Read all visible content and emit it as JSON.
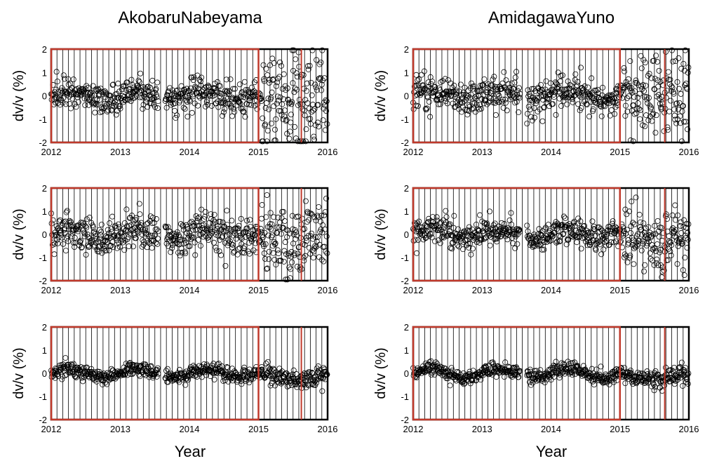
{
  "figure": {
    "columns": [
      "AkobaruNabeyama",
      "AmidagawaYuno"
    ],
    "xlabel": "Year",
    "ylabel": "dv/v (%)"
  },
  "colors": {
    "marker_stroke": "#000000",
    "window_box": "#c0392b",
    "event_line": "#c0392b",
    "frame": "#000000",
    "grid_lines": "#000000"
  },
  "chart_data": [
    {
      "type": "scatter",
      "column": "AkobaruNabeyama",
      "row": 1,
      "xlim": [
        2012,
        2016
      ],
      "ylim": [
        -2,
        2
      ],
      "xticks": [
        2012,
        2013,
        2014,
        2015,
        2016
      ],
      "yticks": [
        2,
        1,
        0,
        -1,
        -2
      ],
      "xlabel": "",
      "ylabel": "dv/v (%)",
      "grid": "vertical monthly",
      "pre_event_std": 0.35,
      "post_event_std": 1.05,
      "window": [
        2012,
        2015
      ],
      "event": 2015.62
    },
    {
      "type": "scatter",
      "column": "AmidagawaYuno",
      "row": 1,
      "xlim": [
        2012,
        2016
      ],
      "ylim": [
        -2,
        2
      ],
      "xticks": [
        2012,
        2013,
        2014,
        2015,
        2016
      ],
      "yticks": [
        2,
        1,
        0,
        -1,
        -2
      ],
      "xlabel": "",
      "ylabel": "dv/v (%)",
      "grid": "vertical monthly",
      "pre_event_std": 0.35,
      "post_event_std": 0.95,
      "window": [
        2012,
        2015
      ],
      "event": 2015.65
    },
    {
      "type": "scatter",
      "column": "AkobaruNabeyama",
      "row": 2,
      "xlim": [
        2012,
        2016
      ],
      "ylim": [
        -2,
        2
      ],
      "xticks": [
        2012,
        2013,
        2014,
        2015,
        2016
      ],
      "yticks": [
        2,
        1,
        0,
        -1,
        -2
      ],
      "xlabel": "",
      "ylabel": "dv/v (%)",
      "grid": "vertical monthly",
      "pre_event_std": 0.4,
      "post_event_std": 0.75,
      "window": [
        2012,
        2015
      ],
      "event": 2015.62
    },
    {
      "type": "scatter",
      "column": "AmidagawaYuno",
      "row": 2,
      "xlim": [
        2012,
        2016
      ],
      "ylim": [
        -2,
        2
      ],
      "xticks": [
        2012,
        2013,
        2014,
        2015,
        2016
      ],
      "yticks": [
        2,
        1,
        0,
        -1,
        -2
      ],
      "xlabel": "",
      "ylabel": "dv/v (%)",
      "grid": "vertical monthly",
      "pre_event_std": 0.3,
      "post_event_std": 0.7,
      "window": [
        2012,
        2015
      ],
      "event": 2015.65
    },
    {
      "type": "scatter",
      "column": "AkobaruNabeyama",
      "row": 3,
      "xlim": [
        2012,
        2016
      ],
      "ylim": [
        -2,
        2
      ],
      "xticks": [
        2012,
        2013,
        2014,
        2015,
        2016
      ],
      "yticks": [
        2,
        1,
        0,
        -1,
        -2
      ],
      "xlabel": "Year",
      "ylabel": "dv/v (%)",
      "grid": "vertical monthly",
      "pre_event_std": 0.15,
      "post_event_std": 0.2,
      "window": [
        2012,
        2015
      ],
      "event": 2015.62
    },
    {
      "type": "scatter",
      "column": "AmidagawaYuno",
      "row": 3,
      "xlim": [
        2012,
        2016
      ],
      "ylim": [
        -2,
        2
      ],
      "xticks": [
        2012,
        2013,
        2014,
        2015,
        2016
      ],
      "yticks": [
        2,
        1,
        0,
        -1,
        -2
      ],
      "xlabel": "Year",
      "ylabel": "dv/v (%)",
      "grid": "vertical monthly",
      "pre_event_std": 0.15,
      "post_event_std": 0.2,
      "window": [
        2012,
        2015
      ],
      "event": 2015.65
    }
  ]
}
